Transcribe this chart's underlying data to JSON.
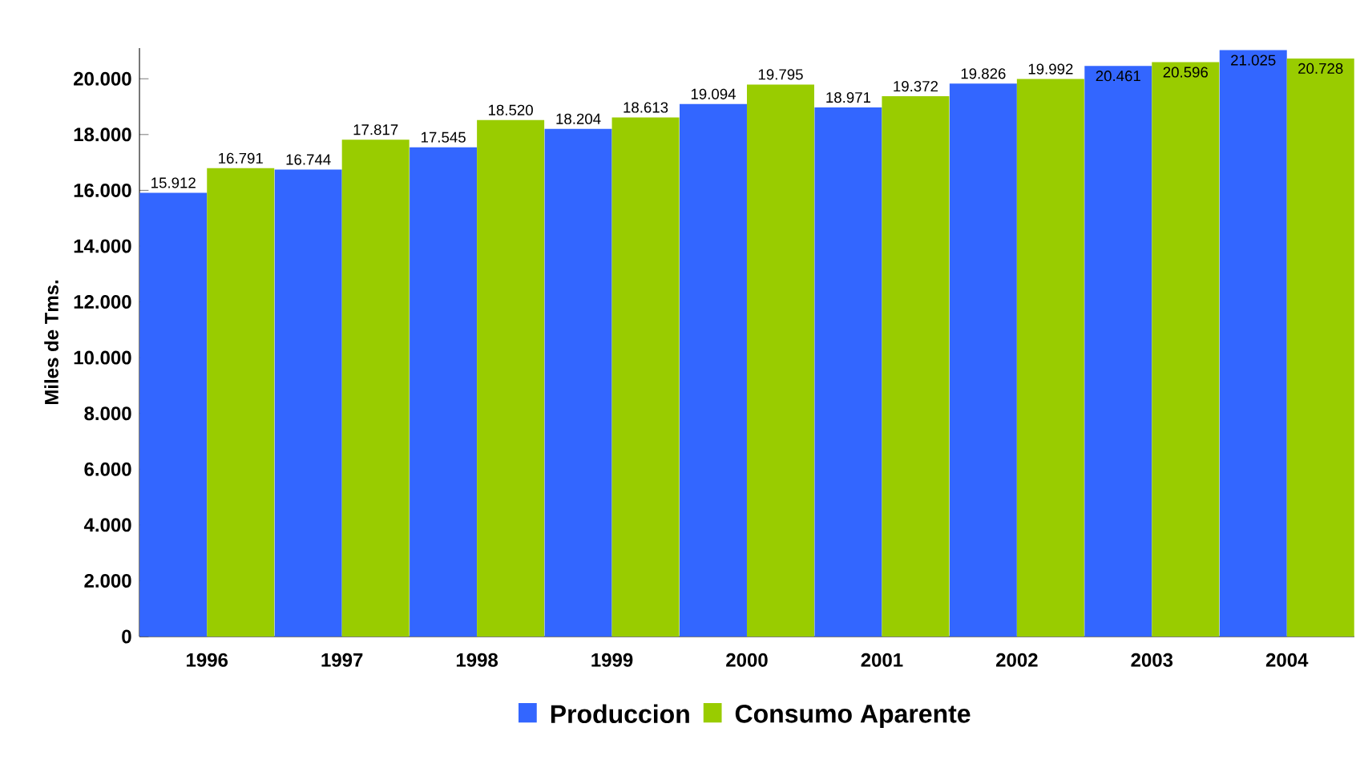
{
  "chart_data": {
    "type": "bar",
    "ylabel": "Miles de Tms.",
    "categories": [
      "1996",
      "1997",
      "1998",
      "1999",
      "2000",
      "2001",
      "2002",
      "2003",
      "2004"
    ],
    "series": [
      {
        "name": "Produccion",
        "color": "#3366ff",
        "values": [
          15912,
          16744,
          17545,
          18204,
          19094,
          18971,
          19826,
          20461,
          21025
        ],
        "value_labels": [
          "15.912",
          "16.744",
          "17.545",
          "18.204",
          "19.094",
          "18.971",
          "19.826",
          "20.461",
          "21.025"
        ]
      },
      {
        "name": "Consumo Aparente",
        "color": "#99cc00",
        "values": [
          16791,
          17817,
          18520,
          18613,
          19795,
          19372,
          19992,
          20596,
          20728
        ],
        "value_labels": [
          "16.791",
          "17.817",
          "18.520",
          "18.613",
          "19.795",
          "19.372",
          "19.992",
          "20.596",
          "20.728"
        ]
      }
    ],
    "ylim": [
      0,
      21100
    ],
    "yticks": [
      {
        "value": 0,
        "label": "0"
      },
      {
        "value": 2000,
        "label": "2.000"
      },
      {
        "value": 4000,
        "label": "4.000"
      },
      {
        "value": 6000,
        "label": "6.000"
      },
      {
        "value": 8000,
        "label": "8.000"
      },
      {
        "value": 10000,
        "label": "10.000"
      },
      {
        "value": 12000,
        "label": "12.000"
      },
      {
        "value": 14000,
        "label": "14.000"
      },
      {
        "value": 16000,
        "label": "16.000"
      },
      {
        "value": 18000,
        "label": "18.000"
      },
      {
        "value": 20000,
        "label": "20.000"
      }
    ],
    "legend": "bottom"
  }
}
